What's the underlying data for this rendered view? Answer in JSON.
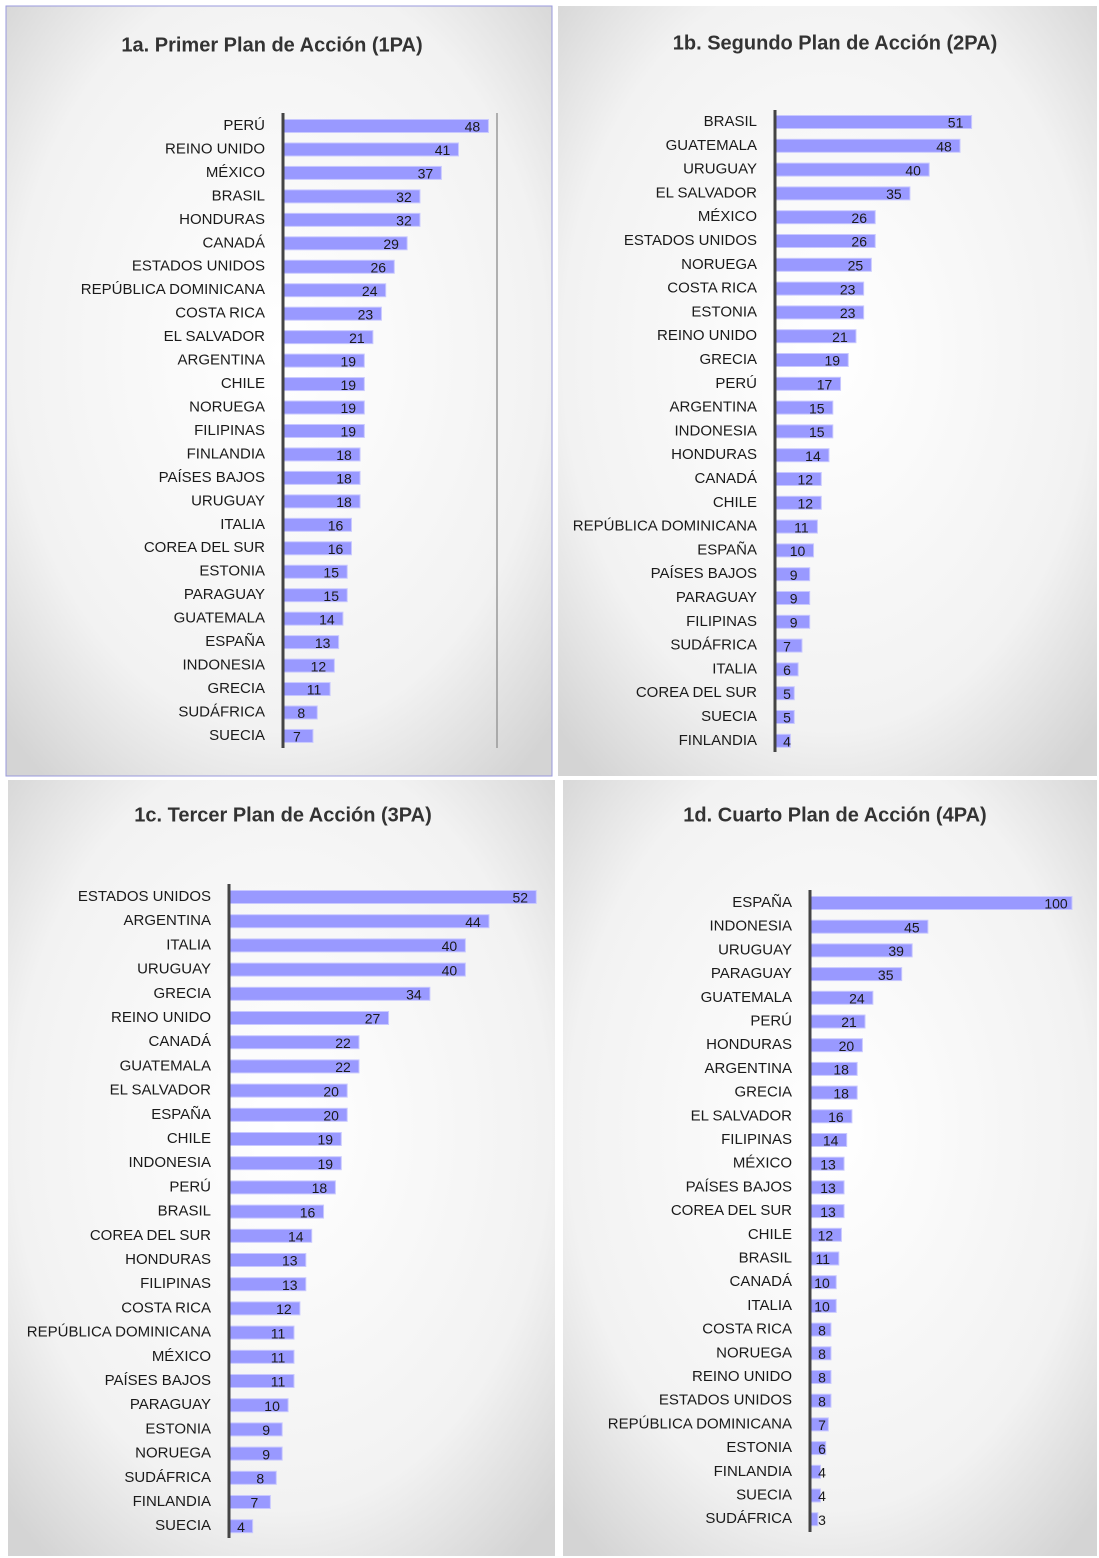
{
  "chart_data": [
    {
      "type": "bar",
      "orientation": "horizontal",
      "title": "1a. Primer Plan de Acción (1PA)",
      "color": "#9999ff",
      "xlim": [
        0,
        50
      ],
      "categories": [
        "PERÚ",
        "REINO UNIDO",
        "MÉXICO",
        "BRASIL",
        "HONDURAS",
        "CANADÁ",
        "ESTADOS UNIDOS",
        "REPÚBLICA DOMINICANA",
        "COSTA RICA",
        "EL SALVADOR",
        "ARGENTINA",
        "CHILE",
        "NORUEGA",
        "FILIPINAS",
        "FINLANDIA",
        "PAÍSES BAJOS",
        "URUGUAY",
        "ITALIA",
        "COREA DEL SUR",
        "ESTONIA",
        "PARAGUAY",
        "GUATEMALA",
        "ESPAÑA",
        "INDONESIA",
        "GRECIA",
        "SUDÁFRICA",
        "SUECIA"
      ],
      "values": [
        48,
        41,
        37,
        32,
        32,
        29,
        26,
        24,
        23,
        21,
        19,
        19,
        19,
        19,
        18,
        18,
        18,
        16,
        16,
        15,
        15,
        14,
        13,
        12,
        11,
        8,
        7
      ]
    },
    {
      "type": "bar",
      "orientation": "horizontal",
      "title": "1b. Segundo Plan de Acción (2PA)",
      "color": "#9999ff",
      "xlim": [
        0,
        55
      ],
      "categories": [
        "BRASIL",
        "GUATEMALA",
        "URUGUAY",
        "EL SALVADOR",
        "MÉXICO",
        "ESTADOS UNIDOS",
        "NORUEGA",
        "COSTA RICA",
        "ESTONIA",
        "REINO UNIDO",
        "GRECIA",
        "PERÚ",
        "ARGENTINA",
        "INDONESIA",
        "HONDURAS",
        "CANADÁ",
        "CHILE",
        "REPÚBLICA DOMINICANA",
        "ESPAÑA",
        "PAÍSES BAJOS",
        "PARAGUAY",
        "FILIPINAS",
        "SUDÁFRICA",
        "ITALIA",
        "COREA DEL SUR",
        "SUECIA",
        "FINLANDIA"
      ],
      "values": [
        51,
        48,
        40,
        35,
        26,
        26,
        25,
        23,
        23,
        21,
        19,
        17,
        15,
        15,
        14,
        12,
        12,
        11,
        10,
        9,
        9,
        9,
        7,
        6,
        5,
        5,
        4
      ]
    },
    {
      "type": "bar",
      "orientation": "horizontal",
      "title": "1c. Tercer Plan de Acción (3PA)",
      "color": "#9999ff",
      "xlim": [
        0,
        55
      ],
      "categories": [
        "ESTADOS UNIDOS",
        "ARGENTINA",
        "ITALIA",
        "URUGUAY",
        "GRECIA",
        "REINO UNIDO",
        "CANADÁ",
        "GUATEMALA",
        "EL SALVADOR",
        "ESPAÑA",
        "CHILE",
        "INDONESIA",
        "PERÚ",
        "BRASIL",
        "COREA DEL SUR",
        "HONDURAS",
        "FILIPINAS",
        "COSTA RICA",
        "REPÚBLICA DOMINICANA",
        "MÉXICO",
        "PAÍSES BAJOS",
        "PARAGUAY",
        "ESTONIA",
        "NORUEGA",
        "SUDÁFRICA",
        "FINLANDIA",
        "SUECIA"
      ],
      "values": [
        52,
        44,
        40,
        40,
        34,
        27,
        22,
        22,
        20,
        20,
        19,
        19,
        18,
        16,
        14,
        13,
        13,
        12,
        11,
        11,
        11,
        10,
        9,
        9,
        8,
        7,
        4
      ]
    },
    {
      "type": "bar",
      "orientation": "horizontal",
      "title": "1d. Cuarto Plan de Acción (4PA)",
      "color": "#9999ff",
      "xlim": [
        0,
        100
      ],
      "categories": [
        "ESPAÑA",
        "INDONESIA",
        "URUGUAY",
        "PARAGUAY",
        "GUATEMALA",
        "PERÚ",
        "HONDURAS",
        "ARGENTINA",
        "GRECIA",
        "EL SALVADOR",
        "FILIPINAS",
        "MÉXICO",
        "PAÍSES BAJOS",
        "COREA DEL SUR",
        "CHILE",
        "BRASIL",
        "CANADÁ",
        "ITALIA",
        "COSTA RICA",
        "NORUEGA",
        "REINO UNIDO",
        "ESTADOS UNIDOS",
        "REPÚBLICA DOMINICANA",
        "ESTONIA",
        "FINLANDIA",
        "SUECIA",
        "SUDÁFRICA"
      ],
      "values": [
        100,
        45,
        39,
        35,
        24,
        21,
        20,
        18,
        18,
        16,
        14,
        13,
        13,
        13,
        12,
        11,
        10,
        10,
        8,
        8,
        8,
        8,
        7,
        6,
        4,
        4,
        3
      ]
    }
  ]
}
